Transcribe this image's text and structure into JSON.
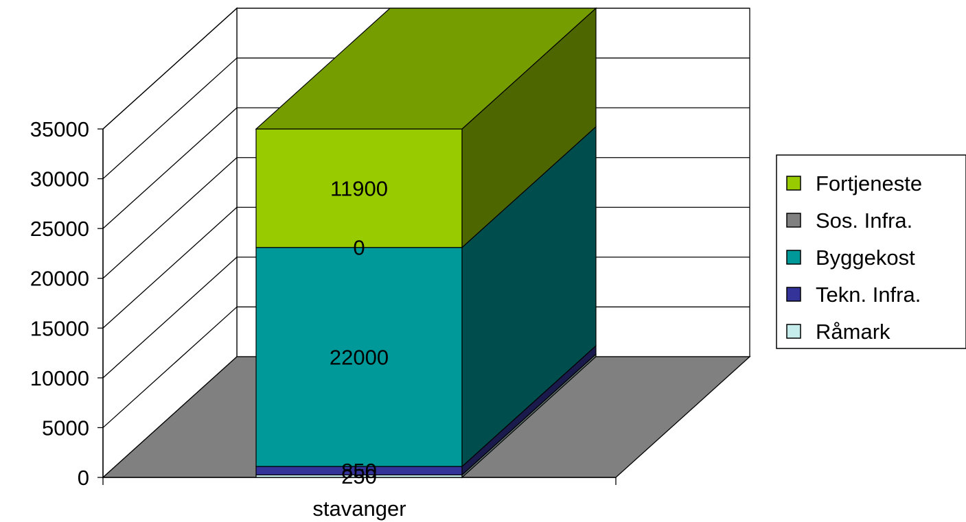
{
  "chart_data": {
    "type": "bar",
    "stacked": true,
    "three_d": true,
    "categories": [
      "stavanger"
    ],
    "series": [
      {
        "name": "Råmark",
        "values": [
          250
        ],
        "color": "#c6ecec",
        "label": "250"
      },
      {
        "name": "Tekn. Infra.",
        "values": [
          850
        ],
        "color": "#333399",
        "label": "850"
      },
      {
        "name": "Byggekost",
        "values": [
          22000
        ],
        "color": "#009999",
        "label": "22000"
      },
      {
        "name": "Sos. Infra.",
        "values": [
          0
        ],
        "color": "#808080",
        "label": "0"
      },
      {
        "name": "Fortjeneste",
        "values": [
          11900
        ],
        "color": "#99cc00",
        "label": "11900"
      }
    ],
    "y_ticks": [
      "0",
      "5000",
      "10000",
      "15000",
      "20000",
      "25000",
      "30000",
      "35000"
    ],
    "ylim": [
      0,
      35000
    ],
    "grid": true,
    "legend_position": "right",
    "floor_color": "#808080",
    "wall_color": "#ffffff"
  }
}
